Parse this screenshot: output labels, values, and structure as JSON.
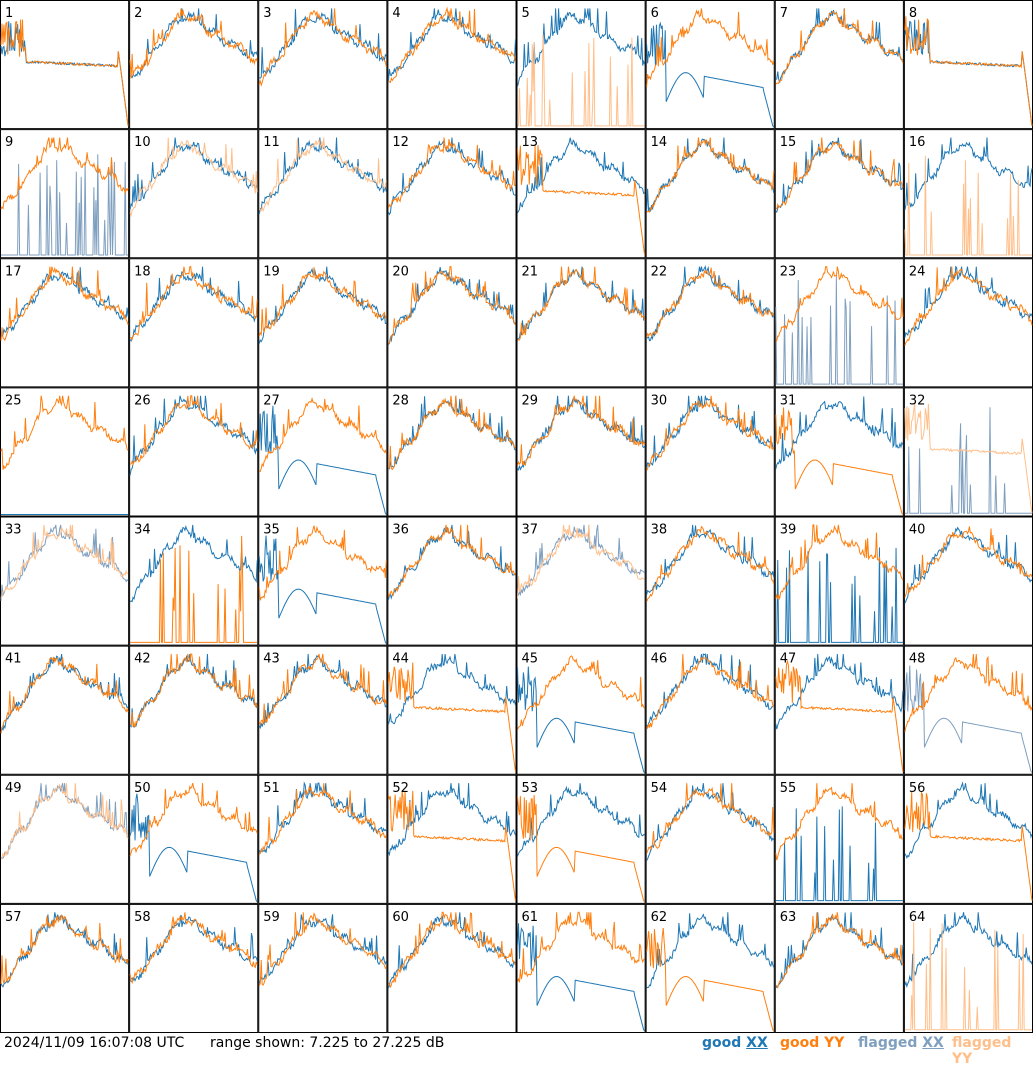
{
  "footer": {
    "timestamp": "2024/11/09 16:07:08 UTC",
    "range": "range shown: 7.225 to 27.225 dB"
  },
  "legend": [
    {
      "label": "good",
      "pol": "XX",
      "color": "#1f77b4"
    },
    {
      "label": "good",
      "pol": "YY",
      "color": "#ff7f0e"
    },
    {
      "label": "flagged",
      "pol": "XX",
      "color": "#7f9fbf"
    },
    {
      "label": "flagged",
      "pol": "YY",
      "color": "#ffbf8a"
    }
  ],
  "chart_data": {
    "type": "line",
    "ylim": [
      7.225,
      27.225
    ],
    "unit": "dB",
    "grid": {
      "rows": 8,
      "cols": 8
    },
    "series_names": [
      "XX",
      "YY"
    ],
    "panels": [
      {
        "id": "1",
        "xx": "flat",
        "yy": "flat",
        "xx_flag": false,
        "yy_flag": false
      },
      {
        "id": "2",
        "xx": "normal",
        "yy": "normal",
        "xx_flag": false,
        "yy_flag": false
      },
      {
        "id": "3",
        "xx": "normal",
        "yy": "normal",
        "xx_flag": false,
        "yy_flag": false
      },
      {
        "id": "4",
        "xx": "normal",
        "yy": "normal",
        "xx_flag": false,
        "yy_flag": false
      },
      {
        "id": "5",
        "xx": "normal",
        "yy": "spikes",
        "xx_flag": false,
        "yy_flag": true
      },
      {
        "id": "6",
        "xx": "dip",
        "yy": "normal",
        "xx_flag": false,
        "yy_flag": false
      },
      {
        "id": "7",
        "xx": "normal",
        "yy": "normal",
        "xx_flag": false,
        "yy_flag": false
      },
      {
        "id": "8",
        "xx": "flat",
        "yy": "flat",
        "xx_flag": false,
        "yy_flag": false
      },
      {
        "id": "9",
        "xx": "spikes",
        "yy": "normal",
        "xx_flag": true,
        "yy_flag": false
      },
      {
        "id": "10",
        "xx": "normal",
        "yy": "normal",
        "xx_flag": false,
        "yy_flag": true
      },
      {
        "id": "11",
        "xx": "normal",
        "yy": "normal",
        "xx_flag": false,
        "yy_flag": true
      },
      {
        "id": "12",
        "xx": "normal",
        "yy": "normal",
        "xx_flag": false,
        "yy_flag": false
      },
      {
        "id": "13",
        "xx": "normal",
        "yy": "flat",
        "xx_flag": false,
        "yy_flag": false
      },
      {
        "id": "14",
        "xx": "normal",
        "yy": "normal",
        "xx_flag": false,
        "yy_flag": false
      },
      {
        "id": "15",
        "xx": "normal",
        "yy": "normal",
        "xx_flag": false,
        "yy_flag": false
      },
      {
        "id": "16",
        "xx": "normal",
        "yy": "spikes",
        "xx_flag": false,
        "yy_flag": true
      },
      {
        "id": "17",
        "xx": "normal",
        "yy": "normal",
        "xx_flag": false,
        "yy_flag": false
      },
      {
        "id": "18",
        "xx": "normal",
        "yy": "normal",
        "xx_flag": false,
        "yy_flag": false
      },
      {
        "id": "19",
        "xx": "normal",
        "yy": "normal",
        "xx_flag": false,
        "yy_flag": false
      },
      {
        "id": "20",
        "xx": "normal",
        "yy": "normal",
        "xx_flag": false,
        "yy_flag": false
      },
      {
        "id": "21",
        "xx": "normal",
        "yy": "normal",
        "xx_flag": false,
        "yy_flag": false
      },
      {
        "id": "22",
        "xx": "normal",
        "yy": "normal",
        "xx_flag": false,
        "yy_flag": false
      },
      {
        "id": "23",
        "xx": "spikes",
        "yy": "normal",
        "xx_flag": true,
        "yy_flag": false
      },
      {
        "id": "24",
        "xx": "normal",
        "yy": "normal",
        "xx_flag": false,
        "yy_flag": false
      },
      {
        "id": "25",
        "xx": "none",
        "yy": "normal",
        "xx_flag": false,
        "yy_flag": false
      },
      {
        "id": "26",
        "xx": "normal",
        "yy": "normal",
        "xx_flag": false,
        "yy_flag": false
      },
      {
        "id": "27",
        "xx": "dip",
        "yy": "normal",
        "xx_flag": false,
        "yy_flag": false
      },
      {
        "id": "28",
        "xx": "normal",
        "yy": "normal",
        "xx_flag": false,
        "yy_flag": false
      },
      {
        "id": "29",
        "xx": "normal",
        "yy": "normal",
        "xx_flag": false,
        "yy_flag": false
      },
      {
        "id": "30",
        "xx": "normal",
        "yy": "normal",
        "xx_flag": false,
        "yy_flag": false
      },
      {
        "id": "31",
        "xx": "normal",
        "yy": "dip",
        "xx_flag": false,
        "yy_flag": false
      },
      {
        "id": "32",
        "xx": "spikes",
        "yy": "flat",
        "xx_flag": true,
        "yy_flag": true
      },
      {
        "id": "33",
        "xx": "normal",
        "yy": "normal",
        "xx_flag": true,
        "yy_flag": true
      },
      {
        "id": "34",
        "xx": "normal",
        "yy": "spikes",
        "xx_flag": false,
        "yy_flag": false
      },
      {
        "id": "35",
        "xx": "dip",
        "yy": "normal",
        "xx_flag": false,
        "yy_flag": false
      },
      {
        "id": "36",
        "xx": "normal",
        "yy": "normal",
        "xx_flag": false,
        "yy_flag": false
      },
      {
        "id": "37",
        "xx": "normal",
        "yy": "normal",
        "xx_flag": true,
        "yy_flag": true
      },
      {
        "id": "38",
        "xx": "normal",
        "yy": "normal",
        "xx_flag": false,
        "yy_flag": false
      },
      {
        "id": "39",
        "xx": "spikes",
        "yy": "normal",
        "xx_flag": false,
        "yy_flag": false
      },
      {
        "id": "40",
        "xx": "normal",
        "yy": "normal",
        "xx_flag": false,
        "yy_flag": false
      },
      {
        "id": "41",
        "xx": "normal",
        "yy": "normal",
        "xx_flag": false,
        "yy_flag": false
      },
      {
        "id": "42",
        "xx": "normal",
        "yy": "normal",
        "xx_flag": false,
        "yy_flag": false
      },
      {
        "id": "43",
        "xx": "normal",
        "yy": "normal",
        "xx_flag": false,
        "yy_flag": false
      },
      {
        "id": "44",
        "xx": "normal",
        "yy": "flat",
        "xx_flag": false,
        "yy_flag": false
      },
      {
        "id": "45",
        "xx": "dip",
        "yy": "normal",
        "xx_flag": false,
        "yy_flag": false
      },
      {
        "id": "46",
        "xx": "normal",
        "yy": "normal",
        "xx_flag": false,
        "yy_flag": false
      },
      {
        "id": "47",
        "xx": "normal",
        "yy": "flat",
        "xx_flag": false,
        "yy_flag": false
      },
      {
        "id": "48",
        "xx": "dip",
        "yy": "normal",
        "xx_flag": true,
        "yy_flag": false
      },
      {
        "id": "49",
        "xx": "normal",
        "yy": "normal",
        "xx_flag": true,
        "yy_flag": true
      },
      {
        "id": "50",
        "xx": "dip",
        "yy": "normal",
        "xx_flag": false,
        "yy_flag": false
      },
      {
        "id": "51",
        "xx": "normal",
        "yy": "normal",
        "xx_flag": false,
        "yy_flag": false
      },
      {
        "id": "52",
        "xx": "normal",
        "yy": "flat",
        "xx_flag": false,
        "yy_flag": false
      },
      {
        "id": "53",
        "xx": "normal",
        "yy": "dip",
        "xx_flag": false,
        "yy_flag": false
      },
      {
        "id": "54",
        "xx": "normal",
        "yy": "normal",
        "xx_flag": false,
        "yy_flag": false
      },
      {
        "id": "55",
        "xx": "spikes",
        "yy": "normal",
        "xx_flag": false,
        "yy_flag": false
      },
      {
        "id": "56",
        "xx": "normal",
        "yy": "flat",
        "xx_flag": false,
        "yy_flag": false
      },
      {
        "id": "57",
        "xx": "normal",
        "yy": "normal",
        "xx_flag": false,
        "yy_flag": false
      },
      {
        "id": "58",
        "xx": "normal",
        "yy": "normal",
        "xx_flag": false,
        "yy_flag": false
      },
      {
        "id": "59",
        "xx": "normal",
        "yy": "normal",
        "xx_flag": false,
        "yy_flag": false
      },
      {
        "id": "60",
        "xx": "normal",
        "yy": "normal",
        "xx_flag": false,
        "yy_flag": false
      },
      {
        "id": "61",
        "xx": "dip",
        "yy": "normal",
        "xx_flag": false,
        "yy_flag": false
      },
      {
        "id": "62",
        "xx": "normal",
        "yy": "dip",
        "xx_flag": false,
        "yy_flag": false
      },
      {
        "id": "63",
        "xx": "normal",
        "yy": "normal",
        "xx_flag": false,
        "yy_flag": false
      },
      {
        "id": "64",
        "xx": "normal",
        "yy": "spikes",
        "xx_flag": false,
        "yy_flag": true
      }
    ]
  }
}
